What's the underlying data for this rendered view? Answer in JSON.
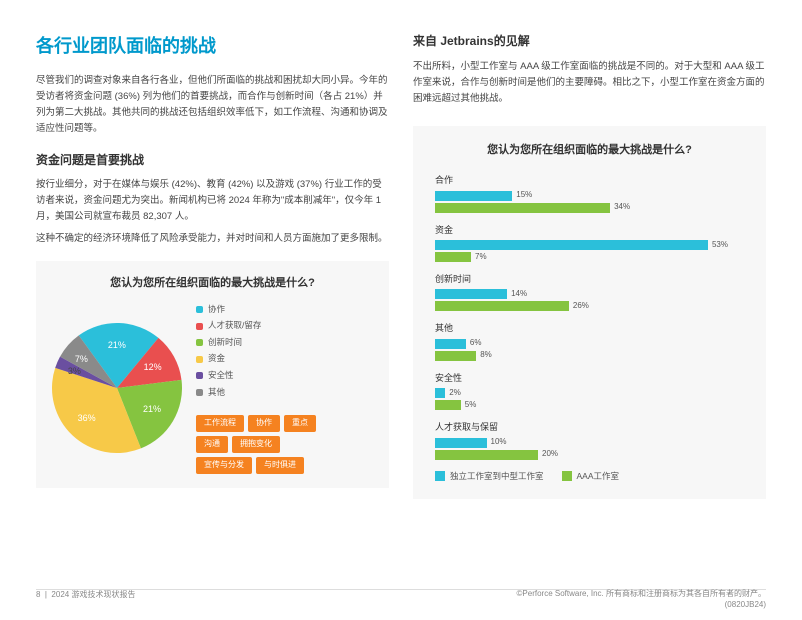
{
  "header": {
    "title": "各行业团队面临的挑战"
  },
  "left": {
    "intro_p1": "尽管我们的调查对象来自各行各业，但他们所面临的挑战和困扰却大同小异。今年的受访者将资金问题 (36%) 列为他们的首要挑战，而合作与创新时间（各占 21%）并列为第二大挑战。其他共同的挑战还包括组织效率低下，如工作流程、沟通和协调及适应性问题等。",
    "sub_h": "资金问题是首要挑战",
    "sub_p1": "按行业细分，对于在媒体与娱乐 (42%)、教育 (42%) 以及游戏 (37%) 行业工作的受访者来说，资金问题尤为突出。新闻机构已将 2024 年称为\"成本削减年\"，仅今年 1 月，美国公司就宣布裁员 82,307 人。",
    "sub_p2": "这种不确定的经济环境降低了风险承受能力，并对时间和人员方面施加了更多限制。"
  },
  "pie_chart": {
    "title": "您认为您所在组织面临的最大挑战是什么?",
    "slices": [
      {
        "label": "协作",
        "value": 21,
        "color": "#2bbfda",
        "text": "21%"
      },
      {
        "label": "人才获取/留存",
        "value": 12,
        "color": "#e94f4f",
        "text": "12%"
      },
      {
        "label": "创新时间",
        "value": 21,
        "color": "#85c440",
        "text": "21%"
      },
      {
        "label": "资金",
        "value": 36,
        "color": "#f7c948",
        "text": "36%"
      },
      {
        "label": "安全性",
        "value": 3,
        "color": "#6a4fa0",
        "text": "3%"
      },
      {
        "label": "其他",
        "value": 7,
        "color": "#8a8a8a",
        "text": "7%"
      }
    ],
    "tags": [
      "工作流程",
      "协作",
      "重点",
      "沟通",
      "拥抱变化",
      "宣传与分发",
      "与时俱进"
    ],
    "tag_color": "#f58220"
  },
  "right": {
    "header": "来自 Jetbrains的见解",
    "desc": "不出所料，小型工作室与 AAA 级工作室面临的挑战是不同的。对于大型和 AAA 级工作室来说，合作与创新时间是他们的主要障碍。相比之下，小型工作室在资金方面的困难远超过其他挑战。"
  },
  "bar_chart": {
    "title": "您认为您所在组织面临的最大挑战是什么?",
    "series_colors": {
      "indie": "#2bbfda",
      "aaa": "#85c440"
    },
    "groups": [
      {
        "label": "合作",
        "a": 15,
        "b": 34
      },
      {
        "label": "资金",
        "a": 53,
        "b": 7
      },
      {
        "label": "创新时间",
        "a": 14,
        "b": 26
      },
      {
        "label": "其他",
        "a": 6,
        "b": 8
      },
      {
        "label": "安全性",
        "a": 2,
        "b": 5
      },
      {
        "label": "人才获取与保留",
        "a": 10,
        "b": 20
      }
    ],
    "max": 60,
    "legend": {
      "a": "独立工作室到中型工作室",
      "b": "AAA工作室"
    }
  },
  "footer": {
    "left_page": "8",
    "left_title": "2024 游戏技术现状报告",
    "right": "©Perforce Software, Inc. 所有商标和注册商标为其各自所有者的财产。(0820JB24)"
  }
}
